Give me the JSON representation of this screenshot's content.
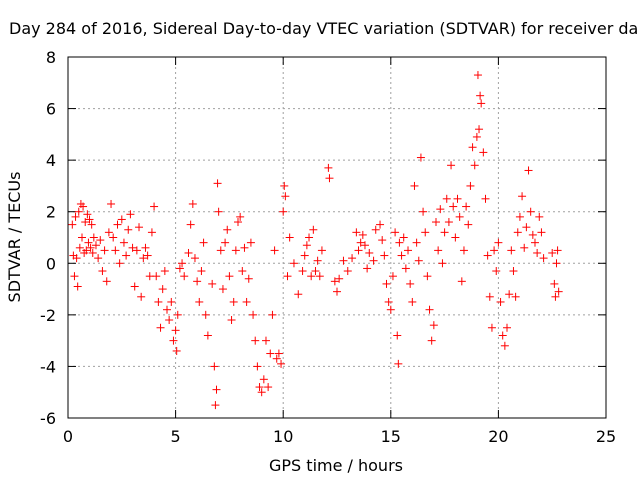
{
  "chart_data": {
    "type": "scatter",
    "title": "Day 284 of 2016, Sidereal Day-to-day VTEC variation (SDTVAR) for receiver da",
    "xlabel": "GPS time / hours",
    "ylabel": "SDTVAR / TECUs",
    "xlim": [
      0,
      25
    ],
    "ylim": [
      -6,
      8
    ],
    "xticks": [
      0,
      5,
      10,
      15,
      20,
      25
    ],
    "yticks": [
      -6,
      -4,
      -2,
      0,
      2,
      4,
      6,
      8
    ],
    "grid": true,
    "marker": "+",
    "series_color": "#ff0000",
    "series": [
      {
        "name": "SDTVAR",
        "points": [
          [
            0.2,
            1.5
          ],
          [
            0.25,
            0.3
          ],
          [
            0.3,
            -0.5
          ],
          [
            0.35,
            1.8
          ],
          [
            0.4,
            0.2
          ],
          [
            0.45,
            -0.9
          ],
          [
            0.5,
            2.0
          ],
          [
            0.55,
            0.6
          ],
          [
            0.6,
            2.3
          ],
          [
            0.65,
            1.0
          ],
          [
            0.7,
            2.2
          ],
          [
            0.75,
            0.4
          ],
          [
            0.8,
            1.6
          ],
          [
            0.85,
            0.5
          ],
          [
            0.9,
            1.9
          ],
          [
            0.95,
            0.8
          ],
          [
            1.0,
            1.7
          ],
          [
            1.05,
            0.6
          ],
          [
            1.1,
            1.5
          ],
          [
            1.15,
            0.4
          ],
          [
            1.2,
            1.0
          ],
          [
            1.3,
            0.7
          ],
          [
            1.4,
            0.2
          ],
          [
            1.5,
            0.9
          ],
          [
            1.6,
            -0.3
          ],
          [
            1.7,
            0.5
          ],
          [
            1.8,
            -0.7
          ],
          [
            1.9,
            1.2
          ],
          [
            2.0,
            2.3
          ],
          [
            2.1,
            1.0
          ],
          [
            2.2,
            0.5
          ],
          [
            2.3,
            1.5
          ],
          [
            2.4,
            0.0
          ],
          [
            2.5,
            1.7
          ],
          [
            2.6,
            0.8
          ],
          [
            2.7,
            0.3
          ],
          [
            2.8,
            1.3
          ],
          [
            2.9,
            1.9
          ],
          [
            3.0,
            0.6
          ],
          [
            3.1,
            -0.9
          ],
          [
            3.2,
            0.5
          ],
          [
            3.3,
            1.4
          ],
          [
            3.4,
            -1.3
          ],
          [
            3.5,
            0.2
          ],
          [
            3.6,
            0.6
          ],
          [
            3.7,
            0.3
          ],
          [
            3.8,
            -0.5
          ],
          [
            3.9,
            1.2
          ],
          [
            4.0,
            2.2
          ],
          [
            4.1,
            -0.5
          ],
          [
            4.2,
            -1.5
          ],
          [
            4.3,
            -2.5
          ],
          [
            4.4,
            -1.0
          ],
          [
            4.5,
            -0.3
          ],
          [
            4.6,
            -1.8
          ],
          [
            4.7,
            -2.2
          ],
          [
            4.8,
            -1.5
          ],
          [
            4.9,
            -3.0
          ],
          [
            5.0,
            -2.6
          ],
          [
            5.05,
            -3.4
          ],
          [
            5.1,
            -2.0
          ],
          [
            5.2,
            -0.2
          ],
          [
            5.3,
            0.0
          ],
          [
            5.4,
            -0.5
          ],
          [
            5.6,
            0.4
          ],
          [
            5.7,
            1.5
          ],
          [
            5.8,
            2.3
          ],
          [
            5.9,
            0.2
          ],
          [
            6.0,
            -0.7
          ],
          [
            6.1,
            -1.5
          ],
          [
            6.2,
            -0.3
          ],
          [
            6.3,
            0.8
          ],
          [
            6.4,
            -2.0
          ],
          [
            6.5,
            -2.8
          ],
          [
            6.7,
            -0.8
          ],
          [
            6.8,
            -4.0
          ],
          [
            6.85,
            -5.5
          ],
          [
            6.9,
            -4.9
          ],
          [
            6.95,
            3.1
          ],
          [
            7.0,
            2.0
          ],
          [
            7.1,
            0.5
          ],
          [
            7.2,
            -1.0
          ],
          [
            7.3,
            0.8
          ],
          [
            7.4,
            1.3
          ],
          [
            7.5,
            -0.5
          ],
          [
            7.6,
            -2.2
          ],
          [
            7.7,
            -1.5
          ],
          [
            7.8,
            0.5
          ],
          [
            7.9,
            1.6
          ],
          [
            8.0,
            1.8
          ],
          [
            8.1,
            -0.3
          ],
          [
            8.2,
            0.6
          ],
          [
            8.3,
            -1.5
          ],
          [
            8.4,
            -0.6
          ],
          [
            8.5,
            0.8
          ],
          [
            8.6,
            -2.0
          ],
          [
            8.7,
            -3.0
          ],
          [
            8.8,
            -4.0
          ],
          [
            8.9,
            -4.8
          ],
          [
            9.0,
            -5.0
          ],
          [
            9.1,
            -4.5
          ],
          [
            9.2,
            -3.0
          ],
          [
            9.3,
            -4.8
          ],
          [
            9.4,
            -3.5
          ],
          [
            9.5,
            -2.0
          ],
          [
            9.6,
            0.5
          ],
          [
            9.7,
            -3.7
          ],
          [
            9.8,
            -3.5
          ],
          [
            9.9,
            -3.9
          ],
          [
            10.0,
            2.0
          ],
          [
            10.05,
            3.0
          ],
          [
            10.1,
            2.6
          ],
          [
            10.2,
            -0.5
          ],
          [
            10.3,
            1.0
          ],
          [
            10.5,
            0.0
          ],
          [
            10.7,
            -1.2
          ],
          [
            10.9,
            -0.3
          ],
          [
            11.0,
            0.3
          ],
          [
            11.1,
            0.7
          ],
          [
            11.2,
            1.0
          ],
          [
            11.3,
            -0.5
          ],
          [
            11.4,
            1.3
          ],
          [
            11.5,
            -0.3
          ],
          [
            11.6,
            0.1
          ],
          [
            11.7,
            -0.5
          ],
          [
            11.8,
            0.5
          ],
          [
            12.1,
            3.7
          ],
          [
            12.15,
            3.3
          ],
          [
            12.4,
            -0.7
          ],
          [
            12.5,
            -1.1
          ],
          [
            12.6,
            -0.6
          ],
          [
            12.8,
            0.1
          ],
          [
            13.0,
            -0.3
          ],
          [
            13.2,
            0.2
          ],
          [
            13.4,
            1.2
          ],
          [
            13.5,
            0.5
          ],
          [
            13.6,
            0.8
          ],
          [
            13.7,
            1.1
          ],
          [
            13.8,
            0.7
          ],
          [
            13.9,
            -0.2
          ],
          [
            14.0,
            0.4
          ],
          [
            14.2,
            0.1
          ],
          [
            14.3,
            1.3
          ],
          [
            14.5,
            1.5
          ],
          [
            14.6,
            0.9
          ],
          [
            14.7,
            0.3
          ],
          [
            14.8,
            -0.8
          ],
          [
            14.9,
            -1.5
          ],
          [
            15.0,
            -1.8
          ],
          [
            15.1,
            -0.5
          ],
          [
            15.2,
            1.2
          ],
          [
            15.3,
            -2.8
          ],
          [
            15.35,
            -3.9
          ],
          [
            15.4,
            0.8
          ],
          [
            15.5,
            0.3
          ],
          [
            15.6,
            1.0
          ],
          [
            15.7,
            -0.2
          ],
          [
            15.8,
            0.5
          ],
          [
            15.9,
            -0.8
          ],
          [
            16.0,
            -1.5
          ],
          [
            16.1,
            3.0
          ],
          [
            16.2,
            0.8
          ],
          [
            16.3,
            0.1
          ],
          [
            16.4,
            4.1
          ],
          [
            16.5,
            2.0
          ],
          [
            16.6,
            1.2
          ],
          [
            16.7,
            -0.5
          ],
          [
            16.8,
            -1.8
          ],
          [
            16.9,
            -3.0
          ],
          [
            17.0,
            -2.4
          ],
          [
            17.1,
            1.6
          ],
          [
            17.2,
            0.5
          ],
          [
            17.3,
            2.1
          ],
          [
            17.4,
            0.0
          ],
          [
            17.5,
            1.2
          ],
          [
            17.6,
            2.5
          ],
          [
            17.7,
            1.6
          ],
          [
            17.8,
            3.8
          ],
          [
            17.9,
            2.2
          ],
          [
            18.0,
            1.0
          ],
          [
            18.1,
            2.5
          ],
          [
            18.2,
            1.8
          ],
          [
            18.3,
            -0.7
          ],
          [
            18.4,
            0.5
          ],
          [
            18.5,
            2.2
          ],
          [
            18.6,
            1.5
          ],
          [
            18.7,
            3.0
          ],
          [
            18.8,
            4.5
          ],
          [
            18.9,
            3.8
          ],
          [
            19.0,
            4.9
          ],
          [
            19.05,
            7.3
          ],
          [
            19.1,
            5.2
          ],
          [
            19.15,
            6.5
          ],
          [
            19.2,
            6.2
          ],
          [
            19.3,
            4.3
          ],
          [
            19.4,
            2.5
          ],
          [
            19.5,
            0.3
          ],
          [
            19.6,
            -1.3
          ],
          [
            19.7,
            -2.5
          ],
          [
            19.8,
            0.5
          ],
          [
            19.9,
            -0.3
          ],
          [
            20.0,
            0.8
          ],
          [
            20.1,
            -1.5
          ],
          [
            20.2,
            -2.8
          ],
          [
            20.3,
            -3.2
          ],
          [
            20.4,
            -2.5
          ],
          [
            20.5,
            -1.2
          ],
          [
            20.6,
            0.5
          ],
          [
            20.7,
            -0.3
          ],
          [
            20.8,
            -1.3
          ],
          [
            20.9,
            1.2
          ],
          [
            21.0,
            1.8
          ],
          [
            21.1,
            2.6
          ],
          [
            21.2,
            0.6
          ],
          [
            21.3,
            1.4
          ],
          [
            21.4,
            3.6
          ],
          [
            21.5,
            2.0
          ],
          [
            21.6,
            1.1
          ],
          [
            21.7,
            0.8
          ],
          [
            21.8,
            0.4
          ],
          [
            21.9,
            1.8
          ],
          [
            22.0,
            1.2
          ],
          [
            22.1,
            0.2
          ],
          [
            22.5,
            0.4
          ],
          [
            22.6,
            -0.8
          ],
          [
            22.65,
            -1.3
          ],
          [
            22.7,
            0.0
          ],
          [
            22.75,
            0.5
          ],
          [
            22.8,
            -1.1
          ]
        ]
      }
    ]
  }
}
